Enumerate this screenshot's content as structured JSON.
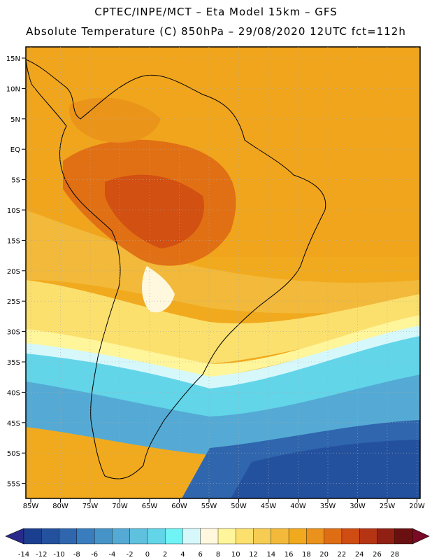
{
  "header": {
    "line1": "CPTEC/INPE/MCT –  Eta Model 15km – GFS",
    "line2": "Absolute Temperature (C) 850hPa – 29/08/2020 12UTC fct=112h"
  },
  "axes": {
    "lat_labels": [
      "15N",
      "10N",
      "5N",
      "EQ",
      "5S",
      "10S",
      "15S",
      "20S",
      "25S",
      "30S",
      "35S",
      "40S",
      "45S",
      "50S",
      "55S"
    ],
    "lon_labels": [
      "85W",
      "80W",
      "75W",
      "70W",
      "65W",
      "60W",
      "55W",
      "50W",
      "45W",
      "40W",
      "35W",
      "30W",
      "25W",
      "20W"
    ]
  },
  "colorbar": {
    "labels": [
      "-14",
      "-12",
      "-10",
      "-8",
      "-6",
      "-4",
      "-2",
      "0",
      "2",
      "4",
      "6",
      "8",
      "10",
      "12",
      "14",
      "16",
      "18",
      "20",
      "22",
      "24",
      "26",
      "28"
    ],
    "colors": [
      "#1b3f8e",
      "#24519e",
      "#2f66ae",
      "#3a7dbf",
      "#4693c8",
      "#54aad4",
      "#5fc1de",
      "#62d5e9",
      "#6ff3f5",
      "#d6f8fb",
      "#fff8df",
      "#fff59a",
      "#fbe06e",
      "#f6cc52",
      "#f2b93a",
      "#f1aa1e",
      "#ea921b",
      "#df6d14",
      "#cf4c12",
      "#b53414",
      "#8f2013",
      "#6a1010"
    ],
    "under_color": "#2a2a8a",
    "over_color": "#7a0a25"
  }
}
